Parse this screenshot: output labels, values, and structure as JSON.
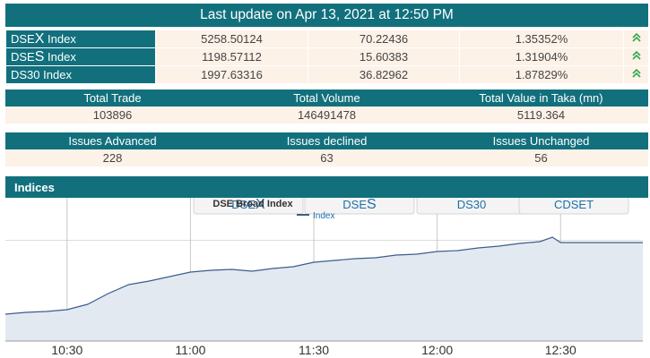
{
  "header": {
    "title": "Last update on Apr 13, 2021 at 12:50 PM"
  },
  "indices": [
    {
      "prefix": "DSE",
      "letter": "X",
      "suffix": " Index",
      "value": "5258.50124",
      "change": "70.22436",
      "percent": "1.35352%",
      "trend": "up-arrow-icon"
    },
    {
      "prefix": "DSE",
      "letter": "S",
      "suffix": " Index",
      "value": "1198.57112",
      "change": "15.60383",
      "percent": "1.31904%",
      "trend": "up-arrow-icon"
    },
    {
      "prefix": "DS30",
      "letter": "",
      "suffix": " Index",
      "value": "1997.63316",
      "change": "36.82962",
      "percent": "1.87829%",
      "trend": "up-arrow-icon"
    }
  ],
  "trade_stats": {
    "headers": [
      "Total Trade",
      "Total Volume",
      "Total Value in Taka (mn)"
    ],
    "values": [
      "103896",
      "146491478",
      "5119.364"
    ]
  },
  "issues": {
    "headers": [
      "Issues Advanced",
      "Issues declined",
      "Issues Unchanged"
    ],
    "values": [
      "228",
      "63",
      "56"
    ]
  },
  "section": {
    "title": "Indices"
  },
  "tabs": [
    {
      "main": "DSE",
      "big": "X"
    },
    {
      "main": "DSE",
      "big": "S"
    },
    {
      "main": "DS30",
      "big": ""
    },
    {
      "main": "CDSET",
      "big": ""
    }
  ],
  "chart_data": {
    "type": "line",
    "title": "DSE Broad Index",
    "legend": "Index",
    "x_ticks": [
      "10:30",
      "11:00",
      "11:30",
      "12:00",
      "12:30"
    ],
    "y_range": [
      5150,
      5280
    ],
    "grid": true,
    "series": [
      {
        "name": "Index",
        "points": [
          [
            "10:15",
            5178
          ],
          [
            "10:20",
            5180
          ],
          [
            "10:25",
            5181
          ],
          [
            "10:30",
            5183
          ],
          [
            "10:35",
            5189
          ],
          [
            "10:40",
            5201
          ],
          [
            "10:45",
            5211
          ],
          [
            "10:50",
            5215
          ],
          [
            "10:55",
            5220
          ],
          [
            "11:00",
            5225
          ],
          [
            "11:05",
            5227
          ],
          [
            "11:10",
            5228
          ],
          [
            "11:15",
            5226
          ],
          [
            "11:20",
            5229
          ],
          [
            "11:25",
            5231
          ],
          [
            "11:30",
            5236
          ],
          [
            "11:35",
            5238
          ],
          [
            "11:40",
            5240
          ],
          [
            "11:45",
            5241
          ],
          [
            "11:50",
            5244
          ],
          [
            "11:55",
            5245
          ],
          [
            "12:00",
            5248
          ],
          [
            "12:05",
            5249
          ],
          [
            "12:10",
            5252
          ],
          [
            "12:15",
            5254
          ],
          [
            "12:20",
            5257
          ],
          [
            "12:25",
            5259
          ],
          [
            "12:28",
            5264
          ],
          [
            "12:30",
            5258
          ],
          [
            "12:35",
            5258
          ],
          [
            "12:40",
            5258
          ],
          [
            "12:50",
            5258
          ]
        ]
      }
    ]
  },
  "colors": {
    "teal": "#12707d",
    "cell": "#fdf2e8",
    "up": "#2fa84f",
    "line": "#3b5e8c",
    "area": "#e3e9f1"
  }
}
